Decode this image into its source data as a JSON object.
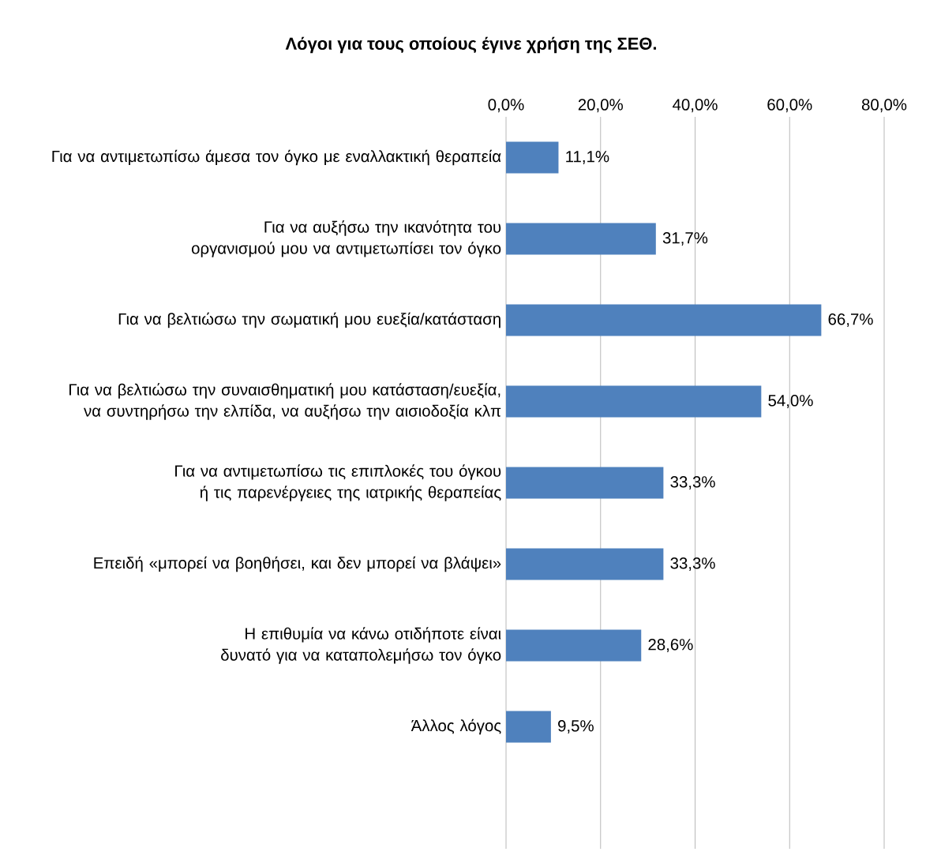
{
  "chart_data": {
    "type": "bar",
    "orientation": "horizontal",
    "title": "Λόγοι για τους οποίους έγινε χρήση της ΣΕΘ.",
    "categories": [
      "Για να αντιμετωπίσω άμεσα τον όγκο με εναλλακτική θεραπεία",
      "Για να αυξήσω την ικανότητα του οργανισμού μου να αντιμετωπίσει τον όγκο",
      "Για να βελτιώσω την σωματική μου ευεξία/κατάσταση",
      "Για να βελτιώσω την συναισθηματική μου κατάσταση/ευεξία, να συντηρήσω την ελπίδα, να αυξήσω την αισιοδοξία κλπ",
      "Για να αντιμετωπίσω τις επιπλοκές του όγκου ή τις παρενέργειες της ιατρικής θεραπείας",
      "Επειδή «μπορεί να βοηθήσει, και δεν μπορεί να βλάψει»",
      "Η επιθυμία να κάνω οτιδήποτε είναι δυνατό για να καταπολεμήσω τον όγκο",
      "Άλλος λόγος"
    ],
    "values": [
      11.1,
      31.7,
      66.7,
      54.0,
      33.3,
      33.3,
      28.6,
      9.5
    ],
    "value_labels": [
      "11,1%",
      "31,7%",
      "66,7%",
      "54,0%",
      "33,3%",
      "33,3%",
      "28,6%",
      "9,5%"
    ],
    "color": "#4f81bd",
    "xlim": [
      0,
      80
    ],
    "xticks": [
      {
        "value": 0,
        "label": "0,0%"
      },
      {
        "value": 20,
        "label": "20,0%"
      },
      {
        "value": 40,
        "label": "40,0%"
      },
      {
        "value": 60,
        "label": "60,0%"
      },
      {
        "value": 80,
        "label": "80,0%"
      }
    ],
    "grid": "x"
  }
}
